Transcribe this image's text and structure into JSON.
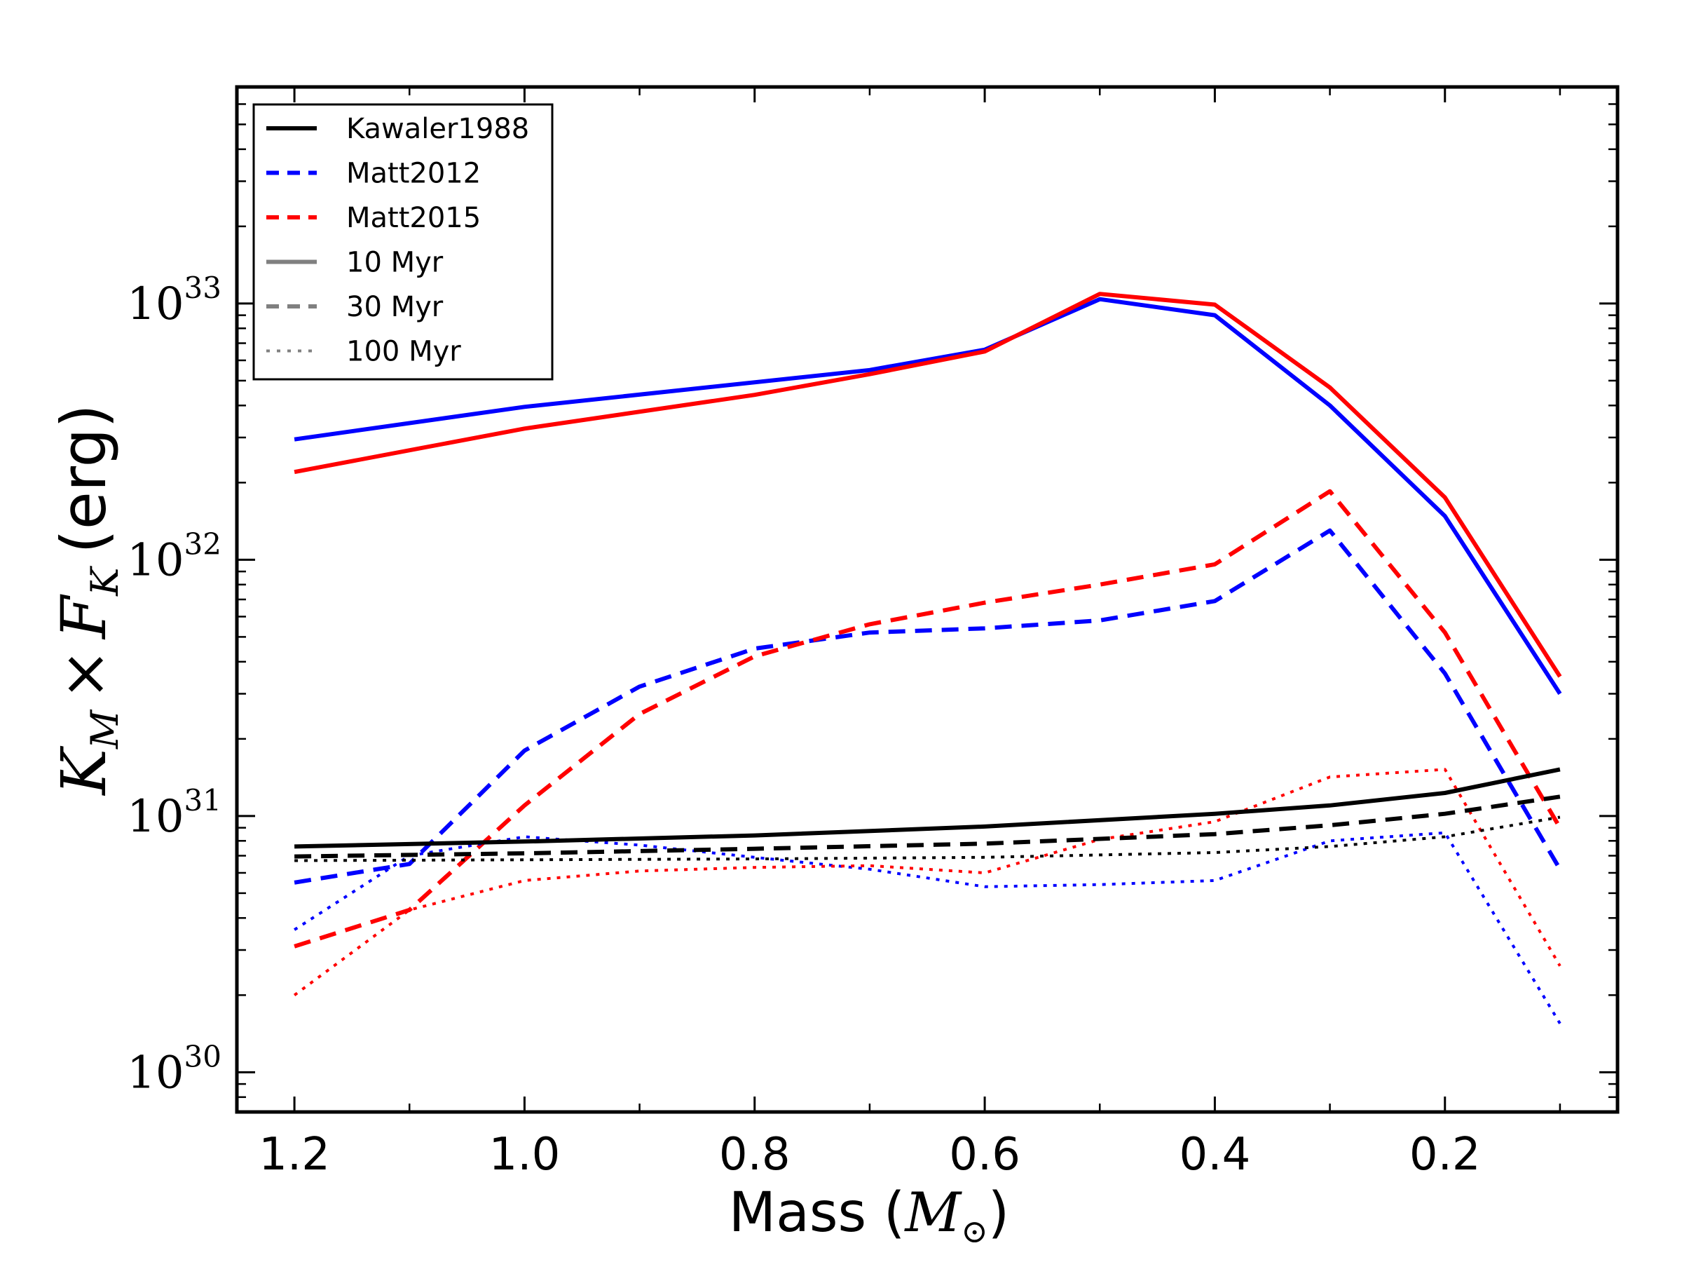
{
  "chart_data": {
    "type": "line",
    "title": "",
    "xlabel": "Mass",
    "xlabel_unit_symbol": "M",
    "xlabel_unit_subscript": "⊙",
    "ylabel_parts": {
      "k": "K",
      "k_sub": "M",
      "times": "×",
      "f": "F",
      "f_sub": "K",
      "unit": "(erg)"
    },
    "xlim": [
      1.25,
      0.05
    ],
    "x_inverted": true,
    "ylim": [
      7e+29,
      7e+33
    ],
    "yscale": "log",
    "x_ticks": [
      1.2,
      1.0,
      0.8,
      0.6,
      0.4,
      0.2
    ],
    "x_tick_labels": [
      "1.2",
      "1.0",
      "0.8",
      "0.6",
      "0.4",
      "0.2"
    ],
    "y_ticks": [
      {
        "value": 1e+30,
        "base": "10",
        "exp": "30"
      },
      {
        "value": 1e+31,
        "base": "10",
        "exp": "31"
      },
      {
        "value": 1e+32,
        "base": "10",
        "exp": "32"
      },
      {
        "value": 1e+33,
        "base": "10",
        "exp": "33"
      }
    ],
    "legend": {
      "placement": "top-left",
      "entries": [
        {
          "label": "Kawaler1988",
          "color": "#000000",
          "style": "solid"
        },
        {
          "label": "Matt2012",
          "color": "#0000ff",
          "style": "dashed"
        },
        {
          "label": "Matt2015",
          "color": "#ff0000",
          "style": "dashed"
        },
        {
          "label": "10 Myr",
          "color": "#808080",
          "style": "solid"
        },
        {
          "label": "30 Myr",
          "color": "#808080",
          "style": "dashed"
        },
        {
          "label": "100 Myr",
          "color": "#808080",
          "style": "dotted"
        }
      ]
    },
    "series": [
      {
        "name": "Matt2012 10 Myr",
        "color": "#0000ff",
        "style": "solid",
        "x": [
          1.2,
          1.0,
          0.7,
          0.6,
          0.5,
          0.4,
          0.3,
          0.2,
          0.1
        ],
        "y": [
          2.95e+32,
          3.95e+32,
          5.5e+32,
          6.6e+32,
          1.04e+33,
          9e+32,
          4e+32,
          1.48e+32,
          3e+31
        ]
      },
      {
        "name": "Matt2015 10 Myr",
        "color": "#ff0000",
        "style": "solid",
        "x": [
          1.2,
          1.0,
          0.8,
          0.7,
          0.6,
          0.5,
          0.4,
          0.3,
          0.2,
          0.1
        ],
        "y": [
          2.2e+32,
          3.25e+32,
          4.4e+32,
          5.3e+32,
          6.5e+32,
          1.09e+33,
          9.9e+32,
          4.7e+32,
          1.75e+32,
          3.5e+31
        ]
      },
      {
        "name": "Matt2012 30 Myr",
        "color": "#0000ff",
        "style": "dashed",
        "x": [
          1.2,
          1.1,
          1.0,
          0.9,
          0.8,
          0.7,
          0.6,
          0.5,
          0.4,
          0.3,
          0.2,
          0.1
        ],
        "y": [
          5.5e+30,
          6.5e+30,
          1.8e+31,
          3.2e+31,
          4.5e+31,
          5.2e+31,
          5.4e+31,
          5.8e+31,
          6.9e+31,
          1.3e+32,
          3.6e+31,
          6.2e+30
        ]
      },
      {
        "name": "Matt2015 30 Myr",
        "color": "#ff0000",
        "style": "dashed",
        "x": [
          1.2,
          1.1,
          1.0,
          0.9,
          0.8,
          0.7,
          0.6,
          0.5,
          0.4,
          0.3,
          0.2,
          0.1
        ],
        "y": [
          3.1e+30,
          4.3e+30,
          1.1e+31,
          2.5e+31,
          4.2e+31,
          5.6e+31,
          6.8e+31,
          8e+31,
          9.6e+31,
          1.85e+32,
          5.2e+31,
          9e+30
        ]
      },
      {
        "name": "Matt2012 100 Myr",
        "color": "#0000ff",
        "style": "dotted",
        "x": [
          1.2,
          1.1,
          1.0,
          0.9,
          0.8,
          0.7,
          0.6,
          0.5,
          0.4,
          0.3,
          0.2,
          0.1
        ],
        "y": [
          3.6e+30,
          7e+30,
          8.3e+30,
          7.7e+30,
          6.9e+30,
          6.2e+30,
          5.3e+30,
          5.4e+30,
          5.6e+30,
          8e+30,
          8.6e+30,
          1.55e+30
        ]
      },
      {
        "name": "Matt2015 100 Myr",
        "color": "#ff0000",
        "style": "dotted",
        "x": [
          1.2,
          1.1,
          1.0,
          0.9,
          0.8,
          0.7,
          0.6,
          0.5,
          0.4,
          0.3,
          0.2,
          0.1
        ],
        "y": [
          2e+30,
          4.3e+30,
          5.6e+30,
          6.1e+30,
          6.3e+30,
          6.4e+30,
          6e+30,
          8.1e+30,
          9.5e+30,
          1.42e+31,
          1.52e+31,
          2.6e+30
        ]
      },
      {
        "name": "Kawaler1988 10 Myr",
        "color": "#000000",
        "style": "solid",
        "x": [
          1.2,
          1.0,
          0.8,
          0.6,
          0.4,
          0.3,
          0.2,
          0.1
        ],
        "y": [
          7.6e+30,
          7.95e+30,
          8.4e+30,
          9.1e+30,
          1.02e+31,
          1.1e+31,
          1.23e+31,
          1.52e+31
        ]
      },
      {
        "name": "Kawaler1988 30 Myr",
        "color": "#000000",
        "style": "dashed",
        "x": [
          1.2,
          1.0,
          0.8,
          0.6,
          0.4,
          0.3,
          0.2,
          0.1
        ],
        "y": [
          6.95e+30,
          7.15e+30,
          7.45e+30,
          7.8e+30,
          8.5e+30,
          9.2e+30,
          1.02e+31,
          1.19e+31
        ]
      },
      {
        "name": "Kawaler1988 100 Myr",
        "color": "#000000",
        "style": "dotted",
        "x": [
          1.2,
          1.0,
          0.8,
          0.6,
          0.4,
          0.3,
          0.2,
          0.1
        ],
        "y": [
          6.7e+30,
          6.75e+30,
          6.8e+30,
          6.9e+30,
          7.2e+30,
          7.6e+30,
          8.3e+30,
          9.9e+30
        ]
      }
    ]
  }
}
